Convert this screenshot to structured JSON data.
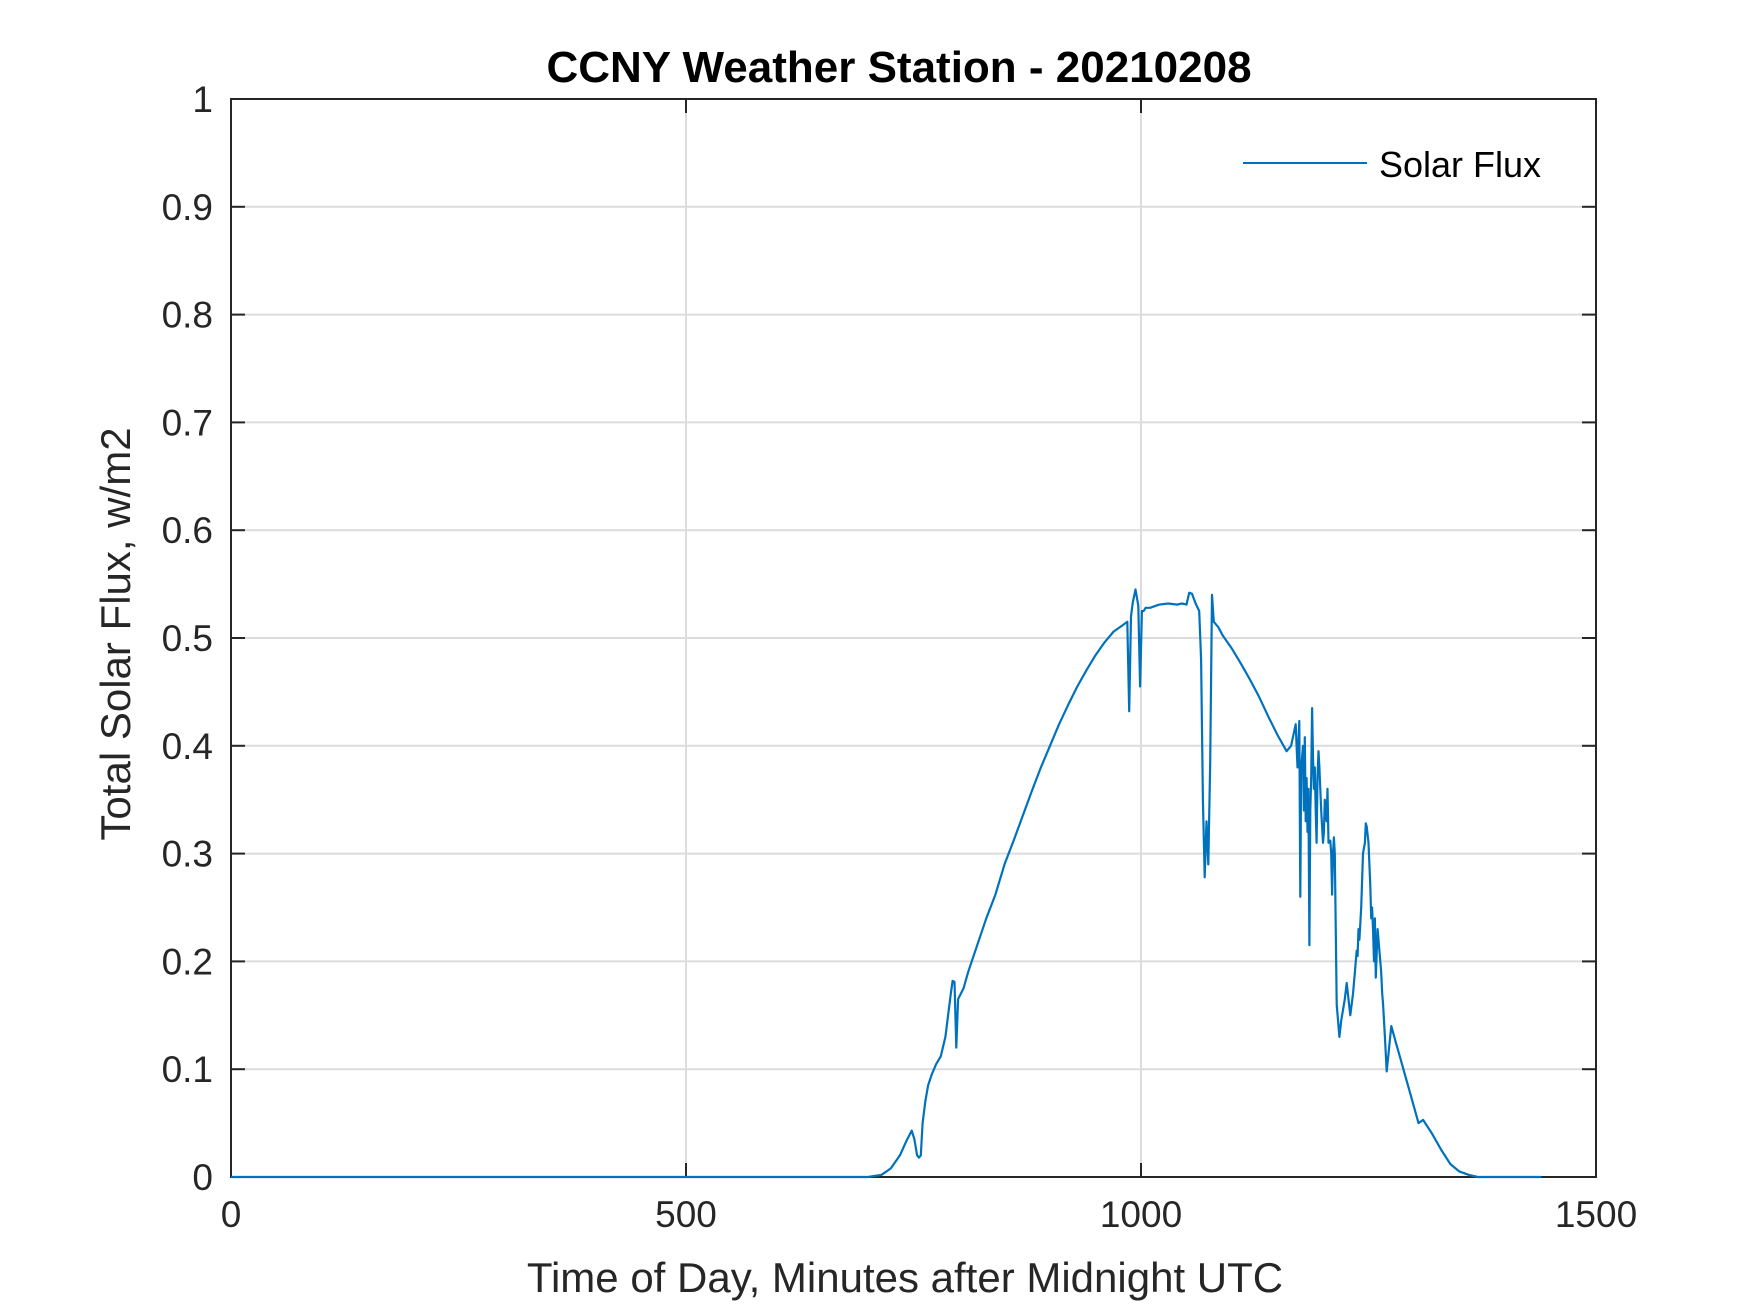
{
  "chart_data": {
    "type": "line",
    "title": "CCNY Weather Station - 20210208",
    "xlabel": "Time of Day, Minutes after Midnight UTC",
    "ylabel": "Total Solar Flux, w/m2",
    "xlim": [
      0,
      1500
    ],
    "ylim": [
      0,
      1
    ],
    "xticks": [
      0,
      500,
      1000,
      1500
    ],
    "xtick_labels": [
      "0",
      "500",
      "1000",
      "1500"
    ],
    "yticks": [
      0,
      0.1,
      0.2,
      0.3,
      0.4,
      0.5,
      0.6,
      0.7,
      0.8,
      0.9,
      1
    ],
    "ytick_labels": [
      "0",
      "0.1",
      "0.2",
      "0.3",
      "0.4",
      "0.5",
      "0.6",
      "0.7",
      "0.8",
      "0.9",
      "1"
    ],
    "grid": true,
    "legend_position": "top-right",
    "series": [
      {
        "name": "Solar Flux",
        "color": "#0072bd",
        "x": [
          0,
          700,
          715,
          725,
          735,
          742,
          748,
          751,
          754,
          756,
          758,
          760,
          763,
          766,
          770,
          775,
          780,
          785,
          788,
          791,
          793,
          795,
          797,
          799,
          802,
          805,
          810,
          820,
          830,
          840,
          850,
          860,
          870,
          880,
          890,
          900,
          910,
          920,
          930,
          940,
          950,
          960,
          970,
          980,
          985,
          987,
          989,
          991,
          994,
          997,
          999,
          1001,
          1003,
          1005,
          1010,
          1020,
          1030,
          1040,
          1045,
          1050,
          1053,
          1056,
          1060,
          1064,
          1066,
          1068,
          1070,
          1072,
          1074,
          1076,
          1078,
          1080,
          1085,
          1090,
          1100,
          1110,
          1120,
          1130,
          1140,
          1150,
          1160,
          1165,
          1170,
          1172,
          1174,
          1175,
          1176,
          1178,
          1179,
          1180,
          1181,
          1182,
          1183,
          1184,
          1185,
          1186,
          1187,
          1188,
          1189,
          1190,
          1191,
          1192,
          1193,
          1194,
          1195,
          1196,
          1198,
          1200,
          1201,
          1202,
          1204,
          1205,
          1206,
          1208,
          1209,
          1210,
          1211,
          1212,
          1213,
          1215,
          1218,
          1220,
          1222,
          1224,
          1226,
          1230,
          1233,
          1235,
          1237,
          1238,
          1239,
          1240,
          1242,
          1244,
          1246,
          1247,
          1248,
          1250,
          1251,
          1252,
          1253,
          1254,
          1255,
          1256,
          1257,
          1258,
          1260,
          1262,
          1264,
          1265,
          1266,
          1268,
          1270,
          1275,
          1280,
          1285,
          1290,
          1295,
          1300,
          1305,
          1310,
          1320,
          1330,
          1340,
          1350,
          1360,
          1370,
          1380,
          1400,
          1440
        ],
        "values": [
          0,
          0,
          0.002,
          0.008,
          0.02,
          0.033,
          0.043,
          0.035,
          0.02,
          0.018,
          0.02,
          0.05,
          0.07,
          0.085,
          0.095,
          0.105,
          0.112,
          0.13,
          0.15,
          0.17,
          0.182,
          0.181,
          0.12,
          0.165,
          0.17,
          0.175,
          0.19,
          0.215,
          0.24,
          0.262,
          0.29,
          0.312,
          0.335,
          0.358,
          0.38,
          0.4,
          0.42,
          0.438,
          0.455,
          0.47,
          0.484,
          0.496,
          0.506,
          0.512,
          0.515,
          0.432,
          0.52,
          0.533,
          0.545,
          0.53,
          0.455,
          0.525,
          0.525,
          0.528,
          0.528,
          0.531,
          0.532,
          0.531,
          0.532,
          0.531,
          0.542,
          0.541,
          0.532,
          0.525,
          0.48,
          0.35,
          0.278,
          0.33,
          0.29,
          0.385,
          0.54,
          0.515,
          0.51,
          0.502,
          0.49,
          0.476,
          0.461,
          0.445,
          0.427,
          0.41,
          0.395,
          0.4,
          0.42,
          0.38,
          0.423,
          0.26,
          0.38,
          0.4,
          0.34,
          0.408,
          0.33,
          0.37,
          0.32,
          0.36,
          0.215,
          0.34,
          0.37,
          0.435,
          0.39,
          0.36,
          0.38,
          0.34,
          0.31,
          0.37,
          0.395,
          0.38,
          0.34,
          0.31,
          0.32,
          0.35,
          0.33,
          0.36,
          0.31,
          0.312,
          0.3,
          0.262,
          0.3,
          0.315,
          0.3,
          0.16,
          0.13,
          0.145,
          0.155,
          0.165,
          0.18,
          0.15,
          0.17,
          0.19,
          0.21,
          0.205,
          0.23,
          0.22,
          0.25,
          0.3,
          0.31,
          0.328,
          0.325,
          0.31,
          0.29,
          0.27,
          0.24,
          0.25,
          0.23,
          0.2,
          0.24,
          0.185,
          0.23,
          0.21,
          0.19,
          0.17,
          0.16,
          0.13,
          0.098,
          0.14,
          0.125,
          0.11,
          0.095,
          0.08,
          0.065,
          0.05,
          0.053,
          0.04,
          0.025,
          0.012,
          0.005,
          0.002,
          0,
          0,
          0,
          0
        ]
      }
    ]
  }
}
